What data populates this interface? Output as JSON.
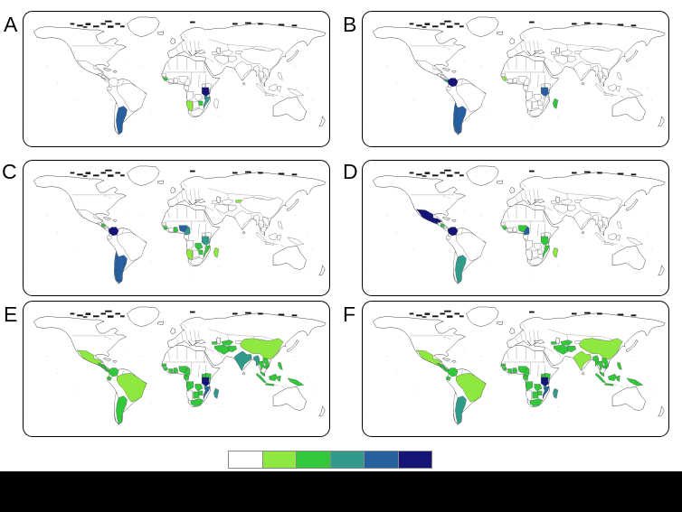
{
  "figure": {
    "type": "choropleth-world-maps",
    "panels": [
      {
        "label": "A",
        "highlights": {
          "argentina": 5,
          "guinea": 3,
          "tanzania": 6,
          "malawi": 4,
          "mozambique": 4,
          "zimbabwe": 3,
          "namibia": 2
        }
      },
      {
        "label": "B",
        "highlights": {
          "colombia": 6,
          "panama_cr": 4,
          "argentina": 5,
          "chile": 5,
          "guinea": 2,
          "tanzania": 5,
          "madagascar": 3
        }
      },
      {
        "label": "C",
        "highlights": {
          "colombia": 6,
          "nicaragua": 3,
          "argentina": 5,
          "chile": 5,
          "guinea": 3,
          "ghana": 3,
          "nigeria": 5,
          "cameroon": 4,
          "tanzania": 4,
          "zambia": 3,
          "zimbabwe": 3,
          "mozambique": 3,
          "namibia": 2,
          "madagascar": 2,
          "kyrgyz": 2
        }
      },
      {
        "label": "D",
        "highlights": {
          "mexico": 6,
          "colombia": 6,
          "nicaragua": 3,
          "argentina": 4,
          "guinea": 3,
          "nigeria": 3,
          "cameroon": 5,
          "tanzania": 3,
          "mozambique": 3,
          "madagascar": 2
        }
      },
      {
        "label": "E",
        "highlights": {
          "mexico": 2,
          "centralamerica": 3,
          "nicaragua": 3,
          "panama_cr": 3,
          "colombia": 3,
          "ecuador": 3,
          "brazil": 2,
          "argentina": 3,
          "senegal": 3,
          "guinea": 3,
          "cotedivoire": 3,
          "ghana": 3,
          "nigeria": 3,
          "cameroon": 3,
          "gabon_congo": 3,
          "angola": 3,
          "zambia": 3,
          "zimbabwe": 3,
          "botswana": 3,
          "southafrica": 3,
          "uganda": 3,
          "kenya": 3,
          "tanzania": 6,
          "malawi": 4,
          "mozambique": 5,
          "madagascar": 4,
          "caucasus": 3,
          "iran": 3,
          "centralasia": 3,
          "afghanistan": 3,
          "china": 2,
          "india": 4,
          "myanmar": 4,
          "thailand": 3,
          "vietnam_laos": 3,
          "cambodia": 3,
          "malaysia": 3,
          "sumatra": 3,
          "java": 3,
          "borneo": 3,
          "sulawesi": 3,
          "philippines": 3,
          "png": 3
        }
      },
      {
        "label": "F",
        "highlights": {
          "mexico": 2,
          "centralamerica": 3,
          "nicaragua": 3,
          "panama_cr": 3,
          "colombia": 3,
          "ecuador": 3,
          "brazil": 2,
          "argentina": 4,
          "senegal": 3,
          "guinea": 3,
          "cotedivoire": 3,
          "ghana": 3,
          "nigeria": 3,
          "cameroon": 3,
          "gabon_congo": 3,
          "angola": 3,
          "zambia": 3,
          "zimbabwe": 3,
          "botswana": 3,
          "southafrica": 3,
          "uganda": 3,
          "kenya": 3,
          "tanzania": 6,
          "malawi": 4,
          "mozambique": 5,
          "madagascar": 4,
          "caucasus": 3,
          "iran": 3,
          "centralasia": 3,
          "afghanistan": 3,
          "china": 2,
          "india": 2,
          "myanmar": 3,
          "thailand": 3,
          "vietnam_laos": 3,
          "cambodia": 3,
          "malaysia": 3,
          "sumatra": 3,
          "java": 3,
          "borneo": 3,
          "sulawesi": 3,
          "philippines": 3,
          "png": 3
        }
      }
    ],
    "legend": {
      "palette": [
        "#ffffff",
        "#8ee840",
        "#33c73c",
        "#319b8b",
        "#28609f",
        "#151578"
      ],
      "steps": 6
    }
  }
}
